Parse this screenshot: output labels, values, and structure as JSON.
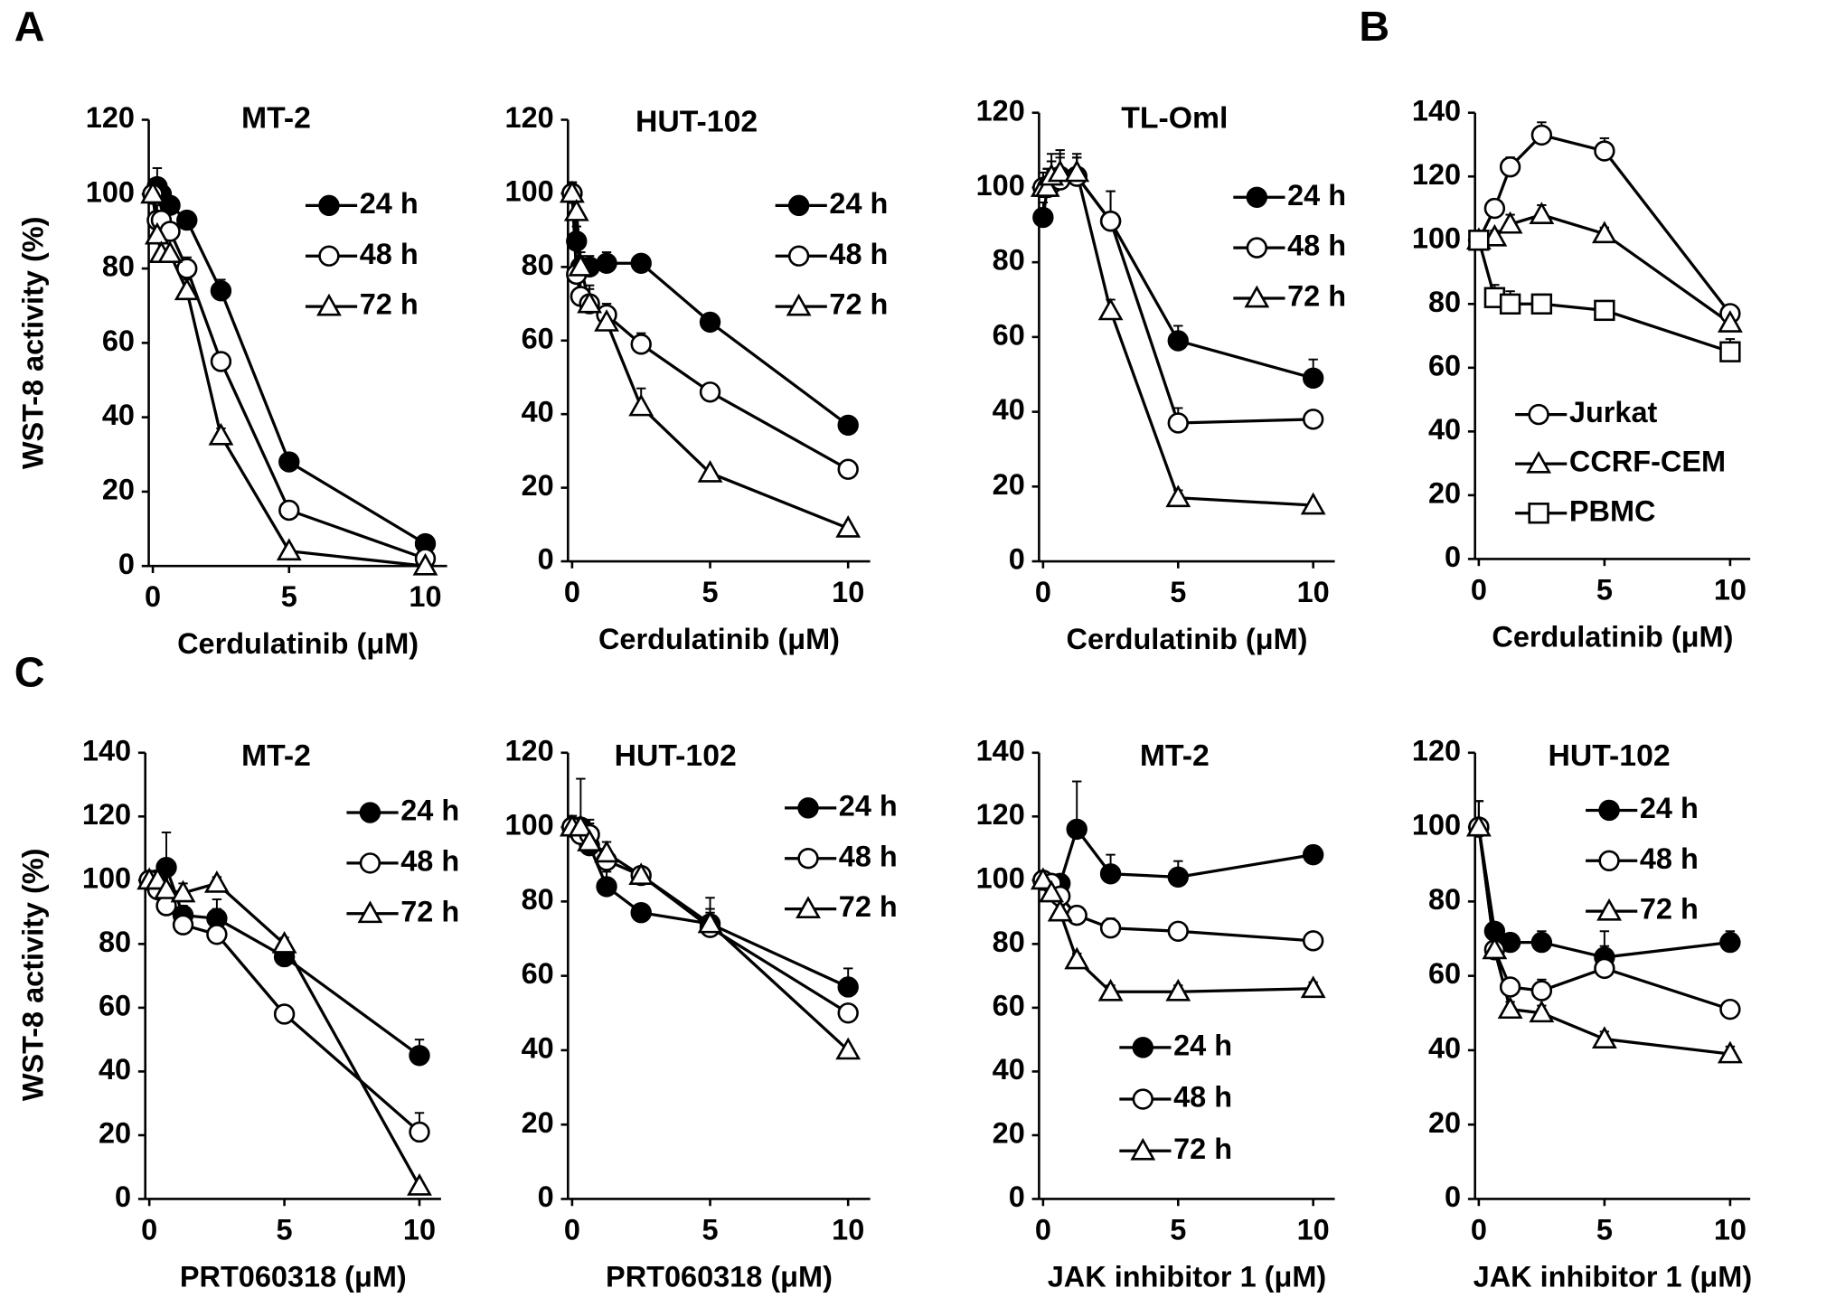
{
  "chart_data": [
    {
      "type": "line",
      "panel_label": "A",
      "title": "MT-2",
      "xlabel": "Cerdulatinib (μM)",
      "ylabel": "WST-8 activity (%)",
      "legend": "upper right",
      "x": [
        0,
        0.16,
        0.31,
        0.63,
        1.25,
        2.5,
        5,
        10
      ],
      "xlim": [
        -0.15,
        10.8
      ],
      "ylim": [
        0,
        120
      ],
      "xticks": [
        0,
        5,
        10
      ],
      "yticks": [
        0,
        20,
        40,
        60,
        80,
        100,
        120
      ],
      "series": [
        {
          "name": "24 h",
          "marker": "filled-circle",
          "color": "#000000",
          "values": [
            100,
            102,
            100,
            97,
            93,
            74,
            28,
            6
          ],
          "errors": [
            4,
            5,
            3,
            2,
            2,
            3,
            1,
            1
          ]
        },
        {
          "name": "48 h",
          "marker": "open-circle",
          "color": "#000000",
          "values": [
            100,
            93,
            93,
            90,
            80,
            55,
            15,
            2
          ],
          "errors": [
            3,
            4,
            5,
            5,
            3,
            2,
            1,
            1
          ]
        },
        {
          "name": "72 h",
          "marker": "open-triangle",
          "color": "#000000",
          "values": [
            100,
            89,
            84,
            84,
            74,
            35,
            4,
            0
          ],
          "errors": [
            3,
            5,
            6,
            8,
            3,
            2,
            1,
            1
          ]
        }
      ]
    },
    {
      "type": "line",
      "title": "HUT-102",
      "xlabel": "Cerdulatinib (μM)",
      "legend": "upper right",
      "x": [
        0,
        0.16,
        0.31,
        0.63,
        1.25,
        2.5,
        5,
        10
      ],
      "xlim": [
        -0.15,
        10.8
      ],
      "ylim": [
        0,
        120
      ],
      "xticks": [
        0,
        5,
        10
      ],
      "yticks": [
        0,
        20,
        40,
        60,
        80,
        100,
        120
      ],
      "series": [
        {
          "name": "24 h",
          "marker": "filled-circle",
          "color": "#000000",
          "values": [
            100,
            87,
            80,
            80,
            81,
            81,
            65,
            37
          ],
          "errors": [
            3,
            4,
            3,
            3,
            3,
            2,
            2,
            1
          ]
        },
        {
          "name": "48 h",
          "marker": "open-circle",
          "color": "#000000",
          "values": [
            100,
            78,
            72,
            70,
            67,
            59,
            46,
            25
          ],
          "errors": [
            3,
            3,
            4,
            4,
            3,
            3,
            1,
            1
          ]
        },
        {
          "name": "72 h",
          "marker": "open-triangle",
          "color": "#000000",
          "values": [
            100,
            95,
            80,
            70,
            65,
            42,
            24,
            9
          ],
          "errors": [
            3,
            3,
            4,
            5,
            4,
            5,
            1,
            1
          ]
        }
      ]
    },
    {
      "type": "line",
      "title": "TL-Oml",
      "xlabel": "Cerdulatinib (μM)",
      "legend": "upper right",
      "x": [
        0,
        0.16,
        0.31,
        0.63,
        1.25,
        2.5,
        5,
        10
      ],
      "xlim": [
        -0.15,
        10.8
      ],
      "ylim": [
        0,
        120
      ],
      "xticks": [
        0,
        5,
        10
      ],
      "yticks": [
        0,
        20,
        40,
        60,
        80,
        100,
        120
      ],
      "series": [
        {
          "name": "24 h",
          "marker": "filled-circle",
          "color": "#000000",
          "values": [
            92,
            100,
            101,
            103,
            103,
            91,
            59,
            49
          ],
          "errors": [
            4,
            5,
            6,
            6,
            5,
            8,
            4,
            5
          ]
        },
        {
          "name": "48 h",
          "marker": "open-circle",
          "color": "#000000",
          "values": [
            100,
            100,
            101,
            102,
            103,
            91,
            37,
            38
          ],
          "errors": [
            4,
            5,
            6,
            6,
            5,
            8,
            4,
            2
          ]
        },
        {
          "name": "72 h",
          "marker": "open-triangle",
          "color": "#000000",
          "values": [
            100,
            100,
            103,
            104,
            104,
            67,
            17,
            15
          ],
          "errors": [
            4,
            5,
            6,
            6,
            5,
            3,
            2,
            1
          ]
        }
      ]
    },
    {
      "type": "line",
      "panel_label": "B",
      "xlabel": "Cerdulatinib (μM)",
      "legend": "lower left",
      "x": [
        0,
        0.63,
        1.25,
        2.5,
        5,
        10
      ],
      "xlim": [
        -0.15,
        10.8
      ],
      "ylim": [
        0,
        140
      ],
      "xticks": [
        0,
        5,
        10
      ],
      "yticks": [
        0,
        20,
        40,
        60,
        80,
        100,
        120,
        140
      ],
      "series": [
        {
          "name": "Jurkat",
          "marker": "open-circle",
          "color": "#000000",
          "values": [
            100,
            110,
            123,
            133,
            128,
            77
          ],
          "errors": [
            2,
            2,
            3,
            4,
            4,
            2
          ]
        },
        {
          "name": "CCRF-CEM",
          "marker": "open-triangle",
          "color": "#000000",
          "values": [
            100,
            101,
            105,
            108,
            102,
            74
          ],
          "errors": [
            2,
            2,
            3,
            3,
            2,
            2
          ]
        },
        {
          "name": "PBMC",
          "marker": "open-square",
          "color": "#000000",
          "values": [
            100,
            82,
            80,
            80,
            78,
            65
          ],
          "errors": [
            2,
            4,
            4,
            3,
            3,
            4
          ]
        }
      ]
    },
    {
      "type": "line",
      "panel_label": "C",
      "title": "MT-2",
      "xlabel": "PRT060318 (μM)",
      "ylabel": "WST-8 activity (%)",
      "legend": "upper right",
      "x": [
        0,
        0.31,
        0.63,
        1.25,
        2.5,
        5,
        10
      ],
      "xlim": [
        -0.15,
        10.8
      ],
      "ylim": [
        0,
        140
      ],
      "xticks": [
        0,
        5,
        10
      ],
      "yticks": [
        0,
        20,
        40,
        60,
        80,
        100,
        120,
        140
      ],
      "series": [
        {
          "name": "24 h",
          "marker": "filled-circle",
          "color": "#000000",
          "values": [
            100,
            100,
            104,
            89,
            88,
            76,
            45
          ],
          "errors": [
            2,
            3,
            11,
            3,
            3,
            4,
            5
          ]
        },
        {
          "name": "48 h",
          "marker": "open-circle",
          "color": "#000000",
          "values": [
            100,
            97,
            92,
            86,
            83,
            58,
            21
          ],
          "errors": [
            2,
            4,
            5,
            3,
            11,
            2,
            6
          ]
        },
        {
          "name": "72 h",
          "marker": "open-triangle",
          "color": "#000000",
          "values": [
            100,
            100,
            97,
            96,
            99,
            80,
            4
          ],
          "errors": [
            2,
            3,
            4,
            3,
            2,
            2,
            1
          ]
        }
      ]
    },
    {
      "type": "line",
      "title": "HUT-102",
      "xlabel": "PRT060318 (μM)",
      "legend": "upper right",
      "x": [
        0,
        0.31,
        0.63,
        1.25,
        2.5,
        5,
        10
      ],
      "xlim": [
        -0.15,
        10.8
      ],
      "ylim": [
        0,
        120
      ],
      "xticks": [
        0,
        5,
        10
      ],
      "yticks": [
        0,
        20,
        40,
        60,
        80,
        100,
        120
      ],
      "series": [
        {
          "name": "24 h",
          "marker": "filled-circle",
          "color": "#000000",
          "values": [
            100,
            100,
            95,
            84,
            77,
            74,
            57
          ],
          "errors": [
            3,
            13,
            7,
            4,
            2,
            3,
            5
          ]
        },
        {
          "name": "48 h",
          "marker": "open-circle",
          "color": "#000000",
          "values": [
            100,
            98,
            98,
            91,
            87,
            73,
            50
          ],
          "errors": [
            3,
            3,
            3,
            3,
            2,
            5,
            2
          ]
        },
        {
          "name": "72 h",
          "marker": "open-triangle",
          "color": "#000000",
          "values": [
            100,
            100,
            96,
            93,
            87,
            74,
            40
          ],
          "errors": [
            3,
            2,
            3,
            3,
            2,
            7,
            1
          ]
        }
      ]
    },
    {
      "type": "line",
      "title": "MT-2",
      "xlabel": "JAK inhibitor 1 (μM)",
      "legend": "lower center",
      "x": [
        0,
        0.31,
        0.63,
        1.25,
        2.5,
        5,
        10
      ],
      "xlim": [
        -0.15,
        10.8
      ],
      "ylim": [
        0,
        140
      ],
      "xticks": [
        0,
        5,
        10
      ],
      "yticks": [
        0,
        20,
        40,
        60,
        80,
        100,
        120,
        140
      ],
      "series": [
        {
          "name": "24 h",
          "marker": "filled-circle",
          "color": "#000000",
          "values": [
            100,
            99,
            99,
            116,
            102,
            101,
            108
          ],
          "errors": [
            2,
            2,
            2,
            15,
            6,
            5,
            2
          ]
        },
        {
          "name": "48 h",
          "marker": "open-circle",
          "color": "#000000",
          "values": [
            100,
            99,
            95,
            89,
            85,
            84,
            81
          ],
          "errors": [
            2,
            2,
            2,
            2,
            3,
            2,
            2
          ]
        },
        {
          "name": "72 h",
          "marker": "open-triangle",
          "color": "#000000",
          "values": [
            100,
            96,
            90,
            75,
            65,
            65,
            66
          ],
          "errors": [
            2,
            2,
            2,
            2,
            2,
            2,
            2
          ]
        }
      ]
    },
    {
      "type": "line",
      "title": "HUT-102",
      "xlabel": "JAK inhibitor 1 (μM)",
      "legend": "upper right",
      "x": [
        0,
        0.63,
        1.25,
        2.5,
        5,
        10
      ],
      "xlim": [
        -0.15,
        10.8
      ],
      "ylim": [
        0,
        120
      ],
      "xticks": [
        0,
        5,
        10
      ],
      "yticks": [
        0,
        20,
        40,
        60,
        80,
        100,
        120
      ],
      "series": [
        {
          "name": "24 h",
          "marker": "filled-circle",
          "color": "#000000",
          "values": [
            100,
            72,
            69,
            69,
            65,
            69
          ],
          "errors": [
            7,
            2,
            2,
            3,
            3,
            3
          ]
        },
        {
          "name": "48 h",
          "marker": "open-circle",
          "color": "#000000",
          "values": [
            100,
            67,
            57,
            56,
            62,
            51
          ],
          "errors": [
            7,
            2,
            2,
            3,
            10,
            2
          ]
        },
        {
          "name": "72 h",
          "marker": "open-triangle",
          "color": "#000000",
          "values": [
            100,
            67,
            51,
            50,
            43,
            39
          ],
          "errors": [
            7,
            2,
            2,
            2,
            2,
            2
          ]
        }
      ]
    }
  ]
}
